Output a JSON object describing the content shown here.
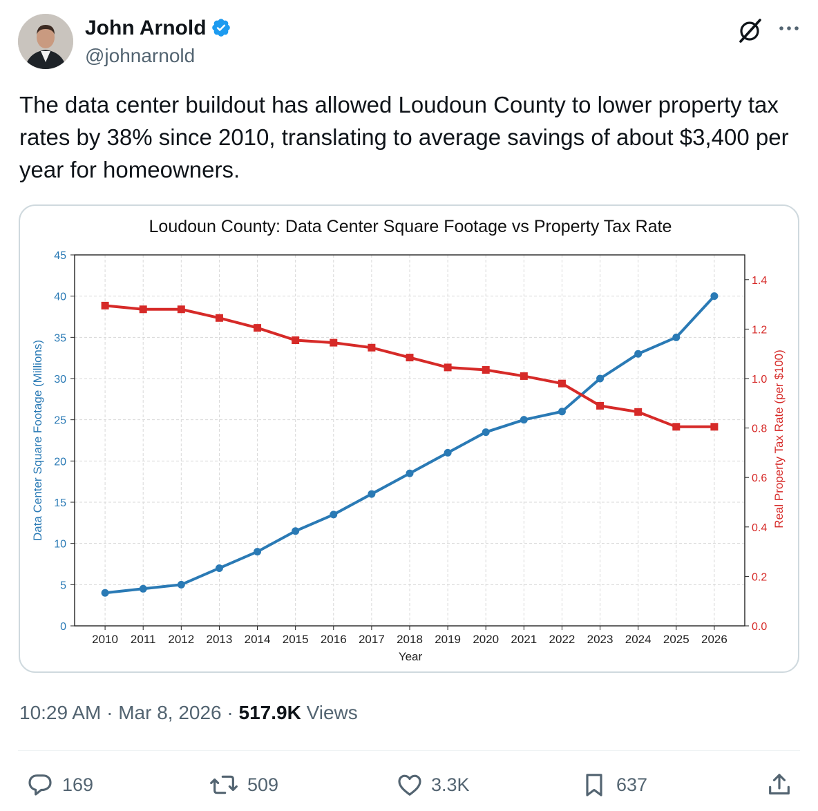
{
  "user": {
    "name": "John Arnold",
    "handle": "@johnarnold"
  },
  "tweet": {
    "text": "The data center buildout has allowed Loudoun County to lower property tax rates by 38% since 2010, translating to average savings of about $3,400 per year for homeowners.",
    "time": "10:29 AM",
    "date": "Mar 8, 2026",
    "views_count": "517.9K",
    "views_label": "Views"
  },
  "actions": {
    "replies": "169",
    "reposts": "509",
    "likes": "3.3K",
    "bookmarks": "637"
  },
  "colors": {
    "sqft": "#2a7ab5",
    "tax": "#d62a28",
    "accent": "#1d9bf0",
    "muted": "#536471"
  },
  "chart_data": {
    "type": "line",
    "title": "Loudoun County: Data Center Square Footage vs Property Tax Rate",
    "xlabel": "Year",
    "ylabel_left": "Data Center Square Footage (Millions)",
    "ylabel_right": "Real Property Tax Rate (per $100)",
    "x": [
      2010,
      2011,
      2012,
      2013,
      2014,
      2015,
      2016,
      2017,
      2018,
      2019,
      2020,
      2021,
      2022,
      2023,
      2024,
      2025,
      2026
    ],
    "ylim_left": [
      0,
      45
    ],
    "yticks_left": [
      0,
      5,
      10,
      15,
      20,
      25,
      30,
      35,
      40,
      45
    ],
    "ylim_right": [
      0,
      1.5
    ],
    "yticks_right": [
      "0.0",
      "0.2",
      "0.4",
      "0.6",
      "0.8",
      "1.0",
      "1.2",
      "1.4"
    ],
    "grid": true,
    "series": [
      {
        "name": "Data Center Square Footage (Millions)",
        "axis": "left",
        "marker": "circle",
        "values": [
          4.0,
          4.5,
          5.0,
          7.0,
          9.0,
          11.5,
          13.5,
          16.0,
          18.5,
          21.0,
          23.5,
          25.0,
          26.0,
          30.0,
          33.0,
          35.0,
          40.0
        ]
      },
      {
        "name": "Real Property Tax Rate (per $100)",
        "axis": "right",
        "marker": "square",
        "values": [
          1.295,
          1.28,
          1.28,
          1.245,
          1.205,
          1.155,
          1.145,
          1.125,
          1.085,
          1.045,
          1.035,
          1.01,
          0.98,
          0.89,
          0.865,
          0.805,
          0.805
        ]
      }
    ]
  }
}
